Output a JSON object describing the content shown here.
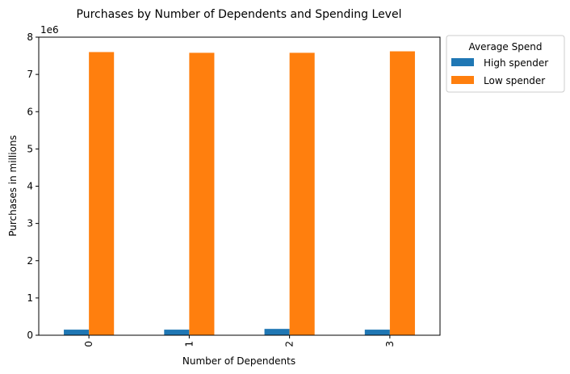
{
  "chart_data": {
    "type": "bar",
    "title": "Purchases by Number of Dependents and Spending Level",
    "xlabel": "Number of Dependents",
    "ylabel": "Purchases in millions",
    "y_offset_label": "1e6",
    "categories": [
      "0",
      "1",
      "2",
      "3"
    ],
    "ylim": [
      0,
      8
    ],
    "yticks": [
      "0",
      "1",
      "2",
      "3",
      "4",
      "5",
      "6",
      "7",
      "8"
    ],
    "series": [
      {
        "name": "High spender",
        "color": "#1f77b4",
        "values": [
          0.15,
          0.15,
          0.17,
          0.15
        ]
      },
      {
        "name": "Low spender",
        "color": "#ff7f0e",
        "values": [
          7.6,
          7.58,
          7.58,
          7.62
        ]
      }
    ],
    "legend": {
      "title": "Average Spend",
      "placement": "outside-top-right"
    },
    "grid": false
  }
}
